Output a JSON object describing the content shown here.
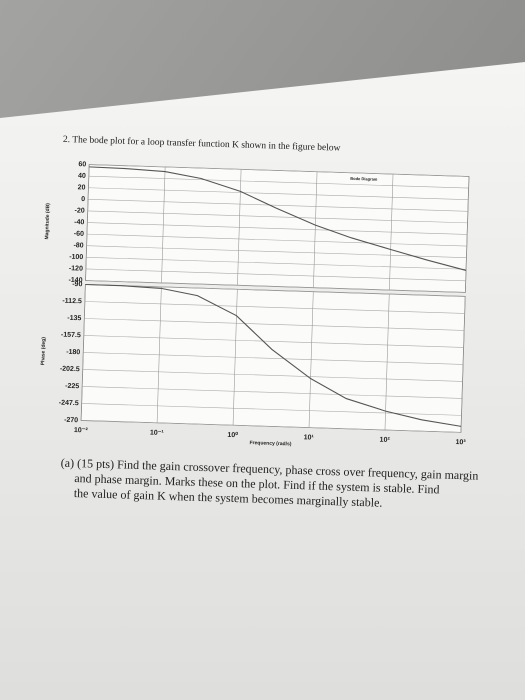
{
  "question": {
    "text": "2. The bode plot for a loop transfer function K shown in the figure below"
  },
  "chart_data": [
    {
      "type": "line",
      "title": "Bode Diagram",
      "ylabel": "Magnitude (dB)",
      "xscale": "log",
      "xlim": [
        0.01,
        1000
      ],
      "ylim": [
        -140,
        60
      ],
      "yticks": [
        60,
        40,
        20,
        0,
        -20,
        -40,
        -60,
        -80,
        -100,
        -120,
        -140
      ],
      "grid": true,
      "x": [
        0.01,
        0.03,
        0.1,
        0.3,
        1,
        3,
        10,
        30,
        100,
        300,
        1000
      ],
      "series": [
        {
          "color": "#555555",
          "values": [
            56,
            55,
            52,
            42,
            22,
            -5,
            -32,
            -52,
            -70,
            -86,
            -102
          ]
        }
      ]
    },
    {
      "type": "line",
      "ylabel": "Phase (deg)",
      "xlabel": "Frequency (rad/s)",
      "xscale": "log",
      "xlim": [
        0.01,
        1000
      ],
      "ylim": [
        -270,
        -90
      ],
      "yticks": [
        -270,
        -247.5,
        -225,
        -202.5,
        -180,
        -157.5,
        -135,
        -112.5,
        -90
      ],
      "grid": true,
      "xticks": [
        {
          "value": 0.01,
          "label": "10⁻²"
        },
        {
          "value": 0.1,
          "label": "10⁻¹"
        },
        {
          "value": 1,
          "label": "10⁰"
        },
        {
          "value": 10,
          "label": "10¹"
        },
        {
          "value": 100,
          "label": "10²"
        },
        {
          "value": 1000,
          "label": "10³"
        }
      ],
      "x": [
        0.01,
        0.03,
        0.1,
        0.3,
        1,
        3,
        10,
        30,
        100,
        300,
        1000
      ],
      "series": [
        {
          "color": "#555555",
          "values": [
            -90,
            -90,
            -92,
            -100,
            -125,
            -168,
            -205,
            -230,
            -245,
            -255,
            -262
          ]
        }
      ]
    }
  ],
  "part_a": {
    "lines": [
      "(a) (15 pts) Find the gain crossover frequency, phase cross over frequency, gain margin",
      "and phase margin.  Marks these on the plot.  Find if the system is stable.  Find",
      "the value of gain K when the system becomes marginally stable."
    ]
  }
}
